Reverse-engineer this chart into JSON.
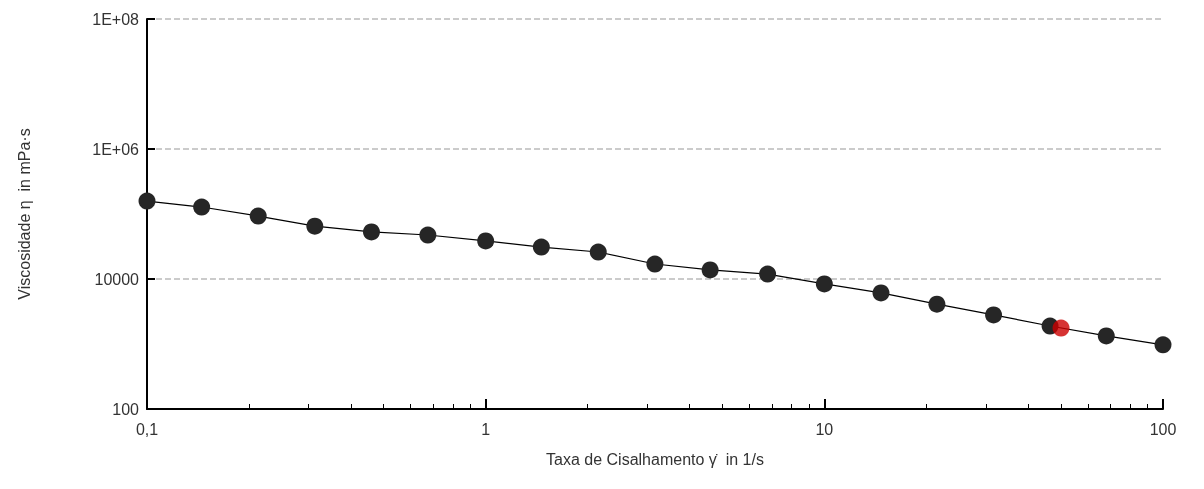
{
  "chart_data": {
    "type": "line",
    "xlabel": "Taxa de Cisalhamento γ̇  in 1/s",
    "ylabel": "Viscosidade η  in mPa·s",
    "log": "xy",
    "grid": "y",
    "marker": "circle",
    "line_style": "solid",
    "xlim": [
      0.1,
      100
    ],
    "xticks": [
      {
        "value": 0.1,
        "label": "0,1"
      },
      1,
      10,
      100
    ],
    "ylim": [
      100,
      100000000
    ],
    "yticks": [
      100,
      10000,
      {
        "value": 1000000,
        "label": "1E+06"
      },
      {
        "value": 100000000,
        "label": "1E+08"
      }
    ],
    "series": [
      {
        "color": "#262626",
        "x": [
          0.1,
          0.145,
          0.213,
          0.313,
          0.46,
          0.675,
          1.0,
          1.46,
          2.15,
          3.16,
          4.6,
          6.8,
          10,
          14.7,
          21.5,
          31.6,
          46.4,
          68,
          100
        ],
        "values": [
          158000,
          128000,
          93000,
          65000,
          53000,
          47500,
          38500,
          31000,
          26000,
          17000,
          13800,
          11900,
          8400,
          6100,
          4100,
          2800,
          1890,
          1330,
          970
        ]
      },
      {
        "type": "scatter",
        "color": "#cc0000",
        "x": [
          50
        ],
        "values": [
          1760
        ]
      }
    ]
  }
}
